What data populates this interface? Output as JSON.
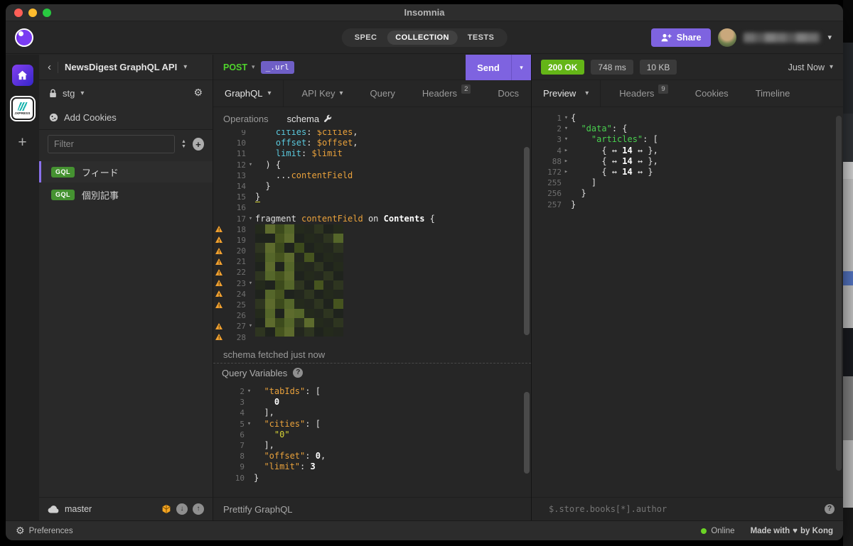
{
  "titlebar": {
    "title": "Insomnia"
  },
  "header": {
    "nav_tabs": [
      {
        "label": "SPEC",
        "active": false
      },
      {
        "label": "COLLECTION",
        "active": true
      },
      {
        "label": "TESTS",
        "active": false
      }
    ],
    "share_label": "Share"
  },
  "activity_bar": {
    "add_label": "+",
    "project_logo_text": "JXPRESS"
  },
  "sidebar": {
    "workspace_name": "NewsDigest GraphQL API",
    "environment_name": "stg",
    "add_cookies_label": "Add Cookies",
    "filter_placeholder": "Filter",
    "requests": [
      {
        "badge": "GQL",
        "label": "フィード",
        "selected": true
      },
      {
        "badge": "GQL",
        "label": "個別記事",
        "selected": false
      }
    ],
    "branch_name": "master"
  },
  "request": {
    "method": "POST",
    "url_tag": "_.url",
    "send_label": "Send",
    "body_tab_label": "GraphQL",
    "tabs": [
      {
        "label": "API Key",
        "caret": true
      },
      {
        "label": "Query"
      },
      {
        "label": "Headers",
        "badge": "2"
      },
      {
        "label": "Docs"
      }
    ],
    "subtabs": [
      {
        "label": "Operations",
        "active": false
      },
      {
        "label": "schema",
        "active": true,
        "icon": "wrench-icon"
      }
    ],
    "editor_lines": [
      {
        "num": 9,
        "tokens": [
          [
            "    ",
            "w"
          ],
          [
            "cities",
            "c"
          ],
          [
            ": ",
            "w"
          ],
          [
            "$cities",
            "o"
          ],
          [
            ",",
            "w"
          ]
        ]
      },
      {
        "num": 10,
        "tokens": [
          [
            "    ",
            "w"
          ],
          [
            "offset",
            "c"
          ],
          [
            ": ",
            "w"
          ],
          [
            "$offset",
            "o"
          ],
          [
            ",",
            "w"
          ]
        ]
      },
      {
        "num": 11,
        "tokens": [
          [
            "    ",
            "w"
          ],
          [
            "limit",
            "c"
          ],
          [
            ": ",
            "w"
          ],
          [
            "$limit",
            "o"
          ]
        ]
      },
      {
        "num": 12,
        "fold": "open",
        "tokens": [
          [
            "  ) {",
            "w"
          ]
        ]
      },
      {
        "num": 13,
        "tokens": [
          [
            "    ...",
            "w"
          ],
          [
            "contentField",
            "o"
          ]
        ]
      },
      {
        "num": 14,
        "tokens": [
          [
            "  }",
            "w"
          ]
        ]
      },
      {
        "num": 15,
        "tokens": [
          [
            "}",
            "wu"
          ]
        ]
      },
      {
        "num": 16,
        "tokens": []
      },
      {
        "num": 17,
        "fold": "open",
        "tokens": [
          [
            "fragment ",
            "w"
          ],
          [
            "contentField",
            "o"
          ],
          [
            " on ",
            "w"
          ],
          [
            "Contents",
            "wb"
          ],
          [
            " {",
            "w"
          ]
        ]
      },
      {
        "num": 18,
        "warn": true,
        "redacted": true
      },
      {
        "num": 19,
        "warn": true,
        "redacted": true
      },
      {
        "num": 20,
        "warn": true,
        "redacted": true
      },
      {
        "num": 21,
        "warn": true,
        "redacted": true
      },
      {
        "num": 22,
        "warn": true,
        "redacted": true
      },
      {
        "num": 23,
        "warn": true,
        "fold": "open",
        "redacted": true
      },
      {
        "num": 24,
        "warn": true,
        "redacted": true
      },
      {
        "num": 25,
        "warn": true,
        "redacted": true
      },
      {
        "num": 26,
        "redacted": true
      },
      {
        "num": 27,
        "warn": true,
        "fold": "open",
        "redacted": true
      },
      {
        "num": 28,
        "warn": true,
        "redacted": true
      }
    ],
    "schema_notice": "schema fetched just now",
    "query_variables_label": "Query Variables",
    "variables_lines": [
      {
        "num": 2,
        "fold": "open",
        "tokens": [
          [
            "  ",
            "w"
          ],
          [
            "\"tabIds\"",
            "o"
          ],
          [
            ": [",
            "w"
          ]
        ]
      },
      {
        "num": 3,
        "tokens": [
          [
            "    ",
            "w"
          ],
          [
            "0",
            "wb"
          ]
        ]
      },
      {
        "num": 4,
        "tokens": [
          [
            "  ],",
            "w"
          ]
        ]
      },
      {
        "num": 5,
        "fold": "open",
        "tokens": [
          [
            "  ",
            "w"
          ],
          [
            "\"cities\"",
            "o"
          ],
          [
            ": [",
            "w"
          ]
        ]
      },
      {
        "num": 6,
        "tokens": [
          [
            "    ",
            "w"
          ],
          [
            "\"0\"",
            "y"
          ]
        ]
      },
      {
        "num": 7,
        "tokens": [
          [
            "  ],",
            "w"
          ]
        ]
      },
      {
        "num": 8,
        "tokens": [
          [
            "  ",
            "w"
          ],
          [
            "\"offset\"",
            "o"
          ],
          [
            ": ",
            "w"
          ],
          [
            "0",
            "wb"
          ],
          [
            ",",
            "w"
          ]
        ]
      },
      {
        "num": 9,
        "tokens": [
          [
            "  ",
            "w"
          ],
          [
            "\"limit\"",
            "o"
          ],
          [
            ": ",
            "w"
          ],
          [
            "3",
            "wb"
          ]
        ]
      },
      {
        "num": 10,
        "tokens": [
          [
            "}",
            "w"
          ]
        ]
      }
    ],
    "prettify_label": "Prettify GraphQL"
  },
  "response": {
    "status": "200 OK",
    "time": "748 ms",
    "size": "10 KB",
    "history_label": "Just Now",
    "tabs": [
      {
        "label": "Preview",
        "caret": true,
        "active": true
      },
      {
        "label": "Headers",
        "badge": "9"
      },
      {
        "label": "Cookies"
      },
      {
        "label": "Timeline"
      }
    ],
    "preview_lines": [
      {
        "num": 1,
        "fold": "open",
        "tokens": [
          [
            "{",
            "w"
          ]
        ]
      },
      {
        "num": 2,
        "fold": "open",
        "tokens": [
          [
            "  ",
            "w"
          ],
          [
            "\"data\"",
            "g"
          ],
          [
            ": {",
            "w"
          ]
        ]
      },
      {
        "num": 3,
        "fold": "open",
        "tokens": [
          [
            "    ",
            "w"
          ],
          [
            "\"articles\"",
            "g"
          ],
          [
            ": [",
            "w"
          ]
        ]
      },
      {
        "num": 4,
        "fold": "closed",
        "tokens": [
          [
            "      { ↔ ",
            "w"
          ],
          [
            "14",
            "wb"
          ],
          [
            " ↔ },",
            "w"
          ]
        ]
      },
      {
        "num": 88,
        "fold": "closed",
        "tokens": [
          [
            "      { ↔ ",
            "w"
          ],
          [
            "14",
            "wb"
          ],
          [
            " ↔ },",
            "w"
          ]
        ]
      },
      {
        "num": 172,
        "fold": "closed",
        "tokens": [
          [
            "      { ↔ ",
            "w"
          ],
          [
            "14",
            "wb"
          ],
          [
            " ↔ }",
            "w"
          ]
        ]
      },
      {
        "num": 255,
        "tokens": [
          [
            "    ]",
            "w"
          ]
        ]
      },
      {
        "num": 256,
        "tokens": [
          [
            "  }",
            "w"
          ]
        ]
      },
      {
        "num": 257,
        "tokens": [
          [
            "}",
            "w"
          ]
        ]
      }
    ],
    "filter_value": "$.store.books[*].author"
  },
  "statusbar": {
    "preferences_label": "Preferences",
    "online_label": "Online",
    "made_with_label": "Made with",
    "heart": "♥",
    "by_label": "by Kong"
  },
  "colors": {
    "accent_purple": "#7e63e0",
    "method_green": "#4fd32c",
    "status_ok_green": "#64b517",
    "gql_badge_green": "#459231",
    "warning_yellow": "#f0a030",
    "online_green": "#6bd325",
    "token_orange": "#e9a13b",
    "token_yellow": "#d8d537",
    "token_cyan": "#5ac8dc",
    "token_green": "#49d04f",
    "redaction_palette": [
      "#46541f",
      "#55662a",
      "#3c4a1c",
      "#5d6b2d",
      "#242a1c",
      "#1f231d",
      "#2e3520",
      "#23271e"
    ]
  }
}
